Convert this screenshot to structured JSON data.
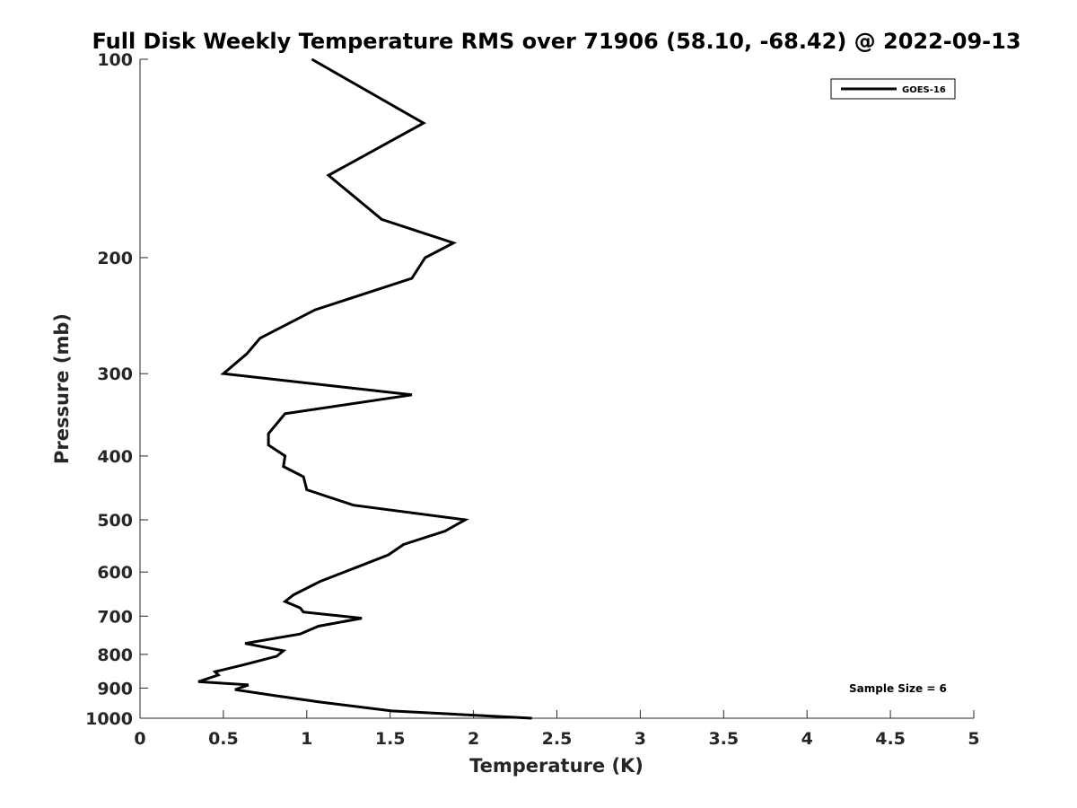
{
  "chart_data": {
    "type": "line",
    "title": "Full Disk Weekly Temperature RMS over 71906 (58.10, -68.42) @ 2022-09-13",
    "xlabel": "Temperature (K)",
    "ylabel": "Pressure (mb)",
    "xlim": [
      0,
      5
    ],
    "ylim": [
      100,
      1000
    ],
    "yscale": "log",
    "y_reversed": true,
    "xticks": [
      "0",
      "0.5",
      "1",
      "1.5",
      "2",
      "2.5",
      "3",
      "3.5",
      "4",
      "4.5",
      "5"
    ],
    "xtick_values": [
      0,
      0.5,
      1,
      1.5,
      2,
      2.5,
      3,
      3.5,
      4,
      4.5,
      5
    ],
    "yticks": [
      "100",
      "200",
      "300",
      "400",
      "500",
      "600",
      "700",
      "800",
      "900",
      "1000"
    ],
    "ytick_values": [
      100,
      200,
      300,
      400,
      500,
      600,
      700,
      800,
      900,
      1000
    ],
    "grid": false,
    "legend_position": "top-right",
    "annotation": "Sample Size = 6",
    "series": [
      {
        "name": "GOES-16",
        "color": "#000000",
        "points": [
          [
            1.03,
            100
          ],
          [
            1.7,
            125
          ],
          [
            1.13,
            150
          ],
          [
            1.45,
            175
          ],
          [
            1.88,
            190
          ],
          [
            1.71,
            200
          ],
          [
            1.63,
            215
          ],
          [
            1.05,
            240
          ],
          [
            0.72,
            265
          ],
          [
            0.64,
            280
          ],
          [
            0.5,
            300
          ],
          [
            1.63,
            323
          ],
          [
            0.87,
            345
          ],
          [
            0.77,
            370
          ],
          [
            0.77,
            385
          ],
          [
            0.87,
            400
          ],
          [
            0.86,
            415
          ],
          [
            0.98,
            430
          ],
          [
            1.0,
            450
          ],
          [
            1.28,
            475
          ],
          [
            1.95,
            500
          ],
          [
            1.83,
            520
          ],
          [
            1.58,
            545
          ],
          [
            1.49,
            565
          ],
          [
            1.3,
            590
          ],
          [
            1.08,
            620
          ],
          [
            0.92,
            650
          ],
          [
            0.87,
            665
          ],
          [
            0.96,
            680
          ],
          [
            0.98,
            690
          ],
          [
            1.33,
            705
          ],
          [
            1.07,
            725
          ],
          [
            0.96,
            745
          ],
          [
            0.63,
            770
          ],
          [
            0.86,
            790
          ],
          [
            0.82,
            805
          ],
          [
            0.62,
            830
          ],
          [
            0.45,
            850
          ],
          [
            0.47,
            860
          ],
          [
            0.35,
            880
          ],
          [
            0.65,
            890
          ],
          [
            0.57,
            905
          ],
          [
            0.82,
            925
          ],
          [
            1.08,
            945
          ],
          [
            1.51,
            975
          ],
          [
            2.35,
            1000
          ]
        ]
      }
    ]
  }
}
